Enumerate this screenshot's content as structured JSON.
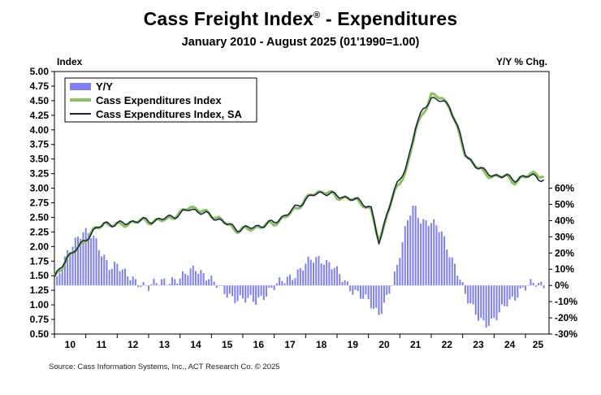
{
  "chart_data": {
    "type": "line",
    "title": "Cass Freight Index",
    "title_mark": "®",
    "title_suffix": " - Expenditures",
    "subtitle": "January 2010 - August 2025 (01'1990=1.00)",
    "ylabel": "Index",
    "y2label": "Y/Y % Chg.",
    "source": "Source: Cass Information Systems, Inc., ACT Research Co. © 2025",
    "ylim": [
      0.5,
      5.0
    ],
    "y_ticks": [
      "0.50",
      "0.75",
      "1.00",
      "1.25",
      "1.50",
      "1.75",
      "2.00",
      "2.25",
      "2.50",
      "2.75",
      "3.00",
      "3.25",
      "3.50",
      "3.75",
      "4.00",
      "4.25",
      "4.50",
      "4.75",
      "5.00"
    ],
    "y2lim": [
      -30,
      60
    ],
    "y2_ticks": [
      "-30%",
      "-20%",
      "-10%",
      "0%",
      "10%",
      "20%",
      "30%",
      "40%",
      "50%",
      "60%"
    ],
    "x_ticks": [
      "10",
      "11",
      "12",
      "13",
      "14",
      "15",
      "16",
      "17",
      "18",
      "19",
      "20",
      "21",
      "22",
      "23",
      "24",
      "25"
    ],
    "x_range": [
      "2010-01",
      "2025-08"
    ],
    "legend_position": "top-left",
    "series": [
      {
        "name": "Y/Y",
        "type": "bar",
        "axis": "right",
        "color": "#8080ee",
        "anchors": [
          [
            2010.0,
            -2
          ],
          [
            2010.3,
            14
          ],
          [
            2010.6,
            27
          ],
          [
            2010.9,
            34
          ],
          [
            2011.2,
            30
          ],
          [
            2011.5,
            20
          ],
          [
            2011.8,
            12
          ],
          [
            2012.0,
            13
          ],
          [
            2012.2,
            7
          ],
          [
            2012.6,
            3
          ],
          [
            2013.0,
            -1
          ],
          [
            2013.4,
            2
          ],
          [
            2013.7,
            4
          ],
          [
            2014.0,
            4
          ],
          [
            2014.3,
            8
          ],
          [
            2014.5,
            11
          ],
          [
            2014.8,
            7
          ],
          [
            2015.0,
            3
          ],
          [
            2015.3,
            -3
          ],
          [
            2015.7,
            -7
          ],
          [
            2016.0,
            -9
          ],
          [
            2016.4,
            -10
          ],
          [
            2016.7,
            -5
          ],
          [
            2017.0,
            -1
          ],
          [
            2017.4,
            4
          ],
          [
            2017.7,
            8
          ],
          [
            2018.0,
            13
          ],
          [
            2018.3,
            16
          ],
          [
            2018.6,
            16
          ],
          [
            2018.9,
            12
          ],
          [
            2019.1,
            5
          ],
          [
            2019.4,
            -2
          ],
          [
            2019.7,
            -4
          ],
          [
            2020.0,
            -10
          ],
          [
            2020.2,
            -17
          ],
          [
            2020.35,
            -18
          ],
          [
            2020.5,
            -11
          ],
          [
            2020.7,
            0
          ],
          [
            2020.9,
            10
          ],
          [
            2021.1,
            27
          ],
          [
            2021.3,
            44
          ],
          [
            2021.45,
            50
          ],
          [
            2021.7,
            40
          ],
          [
            2022.0,
            38
          ],
          [
            2022.3,
            34
          ],
          [
            2022.6,
            20
          ],
          [
            2022.9,
            5
          ],
          [
            2023.1,
            -8
          ],
          [
            2023.4,
            -16
          ],
          [
            2023.7,
            -23
          ],
          [
            2023.9,
            -24
          ],
          [
            2024.1,
            -20
          ],
          [
            2024.4,
            -10
          ],
          [
            2024.7,
            -6
          ],
          [
            2025.0,
            -2
          ],
          [
            2025.3,
            2
          ],
          [
            2025.6,
            1
          ]
        ]
      },
      {
        "name": "Cass Expenditures Index",
        "type": "line",
        "axis": "left",
        "color": "#8cc063",
        "anchors": [
          [
            2010.0,
            1.45
          ],
          [
            2010.4,
            1.8
          ],
          [
            2010.8,
            2.0
          ],
          [
            2011.2,
            2.25
          ],
          [
            2011.6,
            2.4
          ],
          [
            2012.0,
            2.36
          ],
          [
            2012.4,
            2.4
          ],
          [
            2012.8,
            2.45
          ],
          [
            2013.2,
            2.42
          ],
          [
            2013.6,
            2.48
          ],
          [
            2014.0,
            2.55
          ],
          [
            2014.3,
            2.7
          ],
          [
            2014.6,
            2.62
          ],
          [
            2015.0,
            2.55
          ],
          [
            2015.4,
            2.42
          ],
          [
            2015.8,
            2.28
          ],
          [
            2016.2,
            2.3
          ],
          [
            2016.6,
            2.35
          ],
          [
            2017.0,
            2.4
          ],
          [
            2017.4,
            2.52
          ],
          [
            2017.8,
            2.7
          ],
          [
            2018.2,
            2.9
          ],
          [
            2018.6,
            2.95
          ],
          [
            2019.0,
            2.85
          ],
          [
            2019.4,
            2.82
          ],
          [
            2019.8,
            2.75
          ],
          [
            2020.1,
            2.6
          ],
          [
            2020.35,
            2.05
          ],
          [
            2020.6,
            2.6
          ],
          [
            2020.9,
            3.0
          ],
          [
            2021.2,
            3.3
          ],
          [
            2021.5,
            4.0
          ],
          [
            2021.75,
            4.3
          ],
          [
            2022.0,
            4.6
          ],
          [
            2022.3,
            4.55
          ],
          [
            2022.6,
            4.4
          ],
          [
            2022.9,
            3.9
          ],
          [
            2023.1,
            3.55
          ],
          [
            2023.4,
            3.4
          ],
          [
            2023.7,
            3.25
          ],
          [
            2024.0,
            3.2
          ],
          [
            2024.4,
            3.2
          ],
          [
            2024.7,
            3.1
          ],
          [
            2025.0,
            3.2
          ],
          [
            2025.3,
            3.28
          ],
          [
            2025.6,
            3.15
          ]
        ]
      },
      {
        "name": "Cass Expenditures Index, SA",
        "type": "line",
        "axis": "left",
        "color": "#15233a",
        "anchors": [
          [
            2010.0,
            1.45
          ],
          [
            2010.4,
            1.82
          ],
          [
            2010.8,
            2.0
          ],
          [
            2011.2,
            2.25
          ],
          [
            2011.6,
            2.4
          ],
          [
            2012.0,
            2.38
          ],
          [
            2012.4,
            2.42
          ],
          [
            2012.8,
            2.45
          ],
          [
            2013.2,
            2.44
          ],
          [
            2013.6,
            2.5
          ],
          [
            2014.0,
            2.55
          ],
          [
            2014.3,
            2.65
          ],
          [
            2014.6,
            2.6
          ],
          [
            2015.0,
            2.52
          ],
          [
            2015.4,
            2.42
          ],
          [
            2015.8,
            2.3
          ],
          [
            2016.2,
            2.32
          ],
          [
            2016.6,
            2.36
          ],
          [
            2017.0,
            2.42
          ],
          [
            2017.4,
            2.55
          ],
          [
            2017.8,
            2.72
          ],
          [
            2018.2,
            2.88
          ],
          [
            2018.6,
            2.93
          ],
          [
            2019.0,
            2.87
          ],
          [
            2019.4,
            2.83
          ],
          [
            2019.8,
            2.76
          ],
          [
            2020.1,
            2.65
          ],
          [
            2020.35,
            2.0
          ],
          [
            2020.6,
            2.62
          ],
          [
            2020.9,
            3.05
          ],
          [
            2021.2,
            3.35
          ],
          [
            2021.5,
            4.05
          ],
          [
            2021.75,
            4.35
          ],
          [
            2022.0,
            4.55
          ],
          [
            2022.3,
            4.5
          ],
          [
            2022.6,
            4.4
          ],
          [
            2022.9,
            3.95
          ],
          [
            2023.1,
            3.55
          ],
          [
            2023.4,
            3.4
          ],
          [
            2023.7,
            3.28
          ],
          [
            2024.0,
            3.22
          ],
          [
            2024.4,
            3.2
          ],
          [
            2024.7,
            3.15
          ],
          [
            2025.0,
            3.2
          ],
          [
            2025.3,
            3.22
          ],
          [
            2025.6,
            3.12
          ]
        ]
      }
    ]
  }
}
